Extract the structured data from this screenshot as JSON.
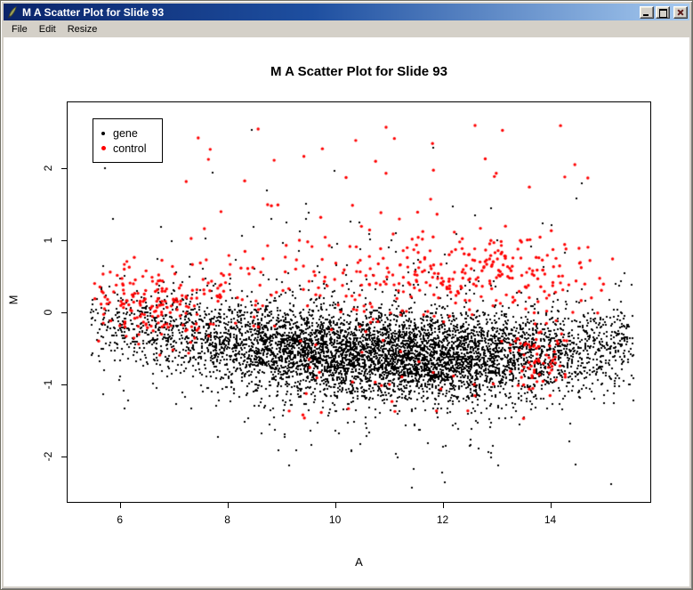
{
  "window": {
    "title": "M A Scatter Plot for Slide 93",
    "menu": [
      {
        "label": "File"
      },
      {
        "label": "Edit"
      },
      {
        "label": "Resize"
      }
    ],
    "controls": [
      {
        "name": "minimize"
      },
      {
        "name": "maximize"
      },
      {
        "name": "close"
      }
    ]
  },
  "chart_data": {
    "type": "scatter",
    "title": "M A Scatter Plot for Slide 93",
    "xlabel": "A",
    "ylabel": "M",
    "xlim": [
      5.03,
      15.86
    ],
    "ylim": [
      -2.63,
      2.91
    ],
    "xticks": [
      6,
      8,
      10,
      12,
      14
    ],
    "yticks": [
      -2,
      -1,
      0,
      1,
      2
    ],
    "grid": false,
    "legend": {
      "position": "top-left",
      "entries": [
        {
          "label": "gene",
          "color": "#000000"
        },
        {
          "label": "control",
          "color": "#FF0000"
        }
      ]
    },
    "seed": 42,
    "series": [
      {
        "name": "gene",
        "color": "#000000",
        "marker_size_px": 2,
        "gen": {
          "count": 6200,
          "a_normal": {
            "mean": 10.9,
            "sd": 2.25
          },
          "a_uniform_frac": 0.13,
          "a_range": [
            5.45,
            15.55
          ],
          "m_curve": {
            "base": -0.62,
            "quad": 0.013,
            "center": 12.0
          },
          "m_sd": 0.3,
          "m_tail_frac": 0.12,
          "m_tail_sd": 0.62,
          "m_range": [
            -2.48,
            2.82
          ],
          "outliers_high": {
            "count": 26,
            "a_mean": 10.8,
            "a_sd": 1.9,
            "m_min": 0.95,
            "m_span": 1.8
          },
          "outliers_low": {
            "count": 16,
            "a_min": 8.0,
            "a_max": 14.0,
            "m_min": -2.45,
            "m_max": -1.55
          }
        }
      },
      {
        "name": "control",
        "color": "#FF0000",
        "marker_size_px": 3,
        "clusters": [
          {
            "name": "left-band",
            "count": 190,
            "a": {
              "mean": 6.7,
              "sd": 0.85,
              "min": 5.5,
              "max": 9.2
            },
            "m": {
              "mean": 0.15,
              "sd": 0.3
            }
          },
          {
            "name": "mid-scatter",
            "count": 115,
            "a": {
              "uniform": [
                8.0,
                11.8
              ]
            },
            "m": {
              "mean": 0.38,
              "sd": 0.42
            }
          },
          {
            "name": "right-top-cluster",
            "count": 210,
            "a": {
              "mean": 12.9,
              "sd": 1.05,
              "min": 10.4,
              "max": 15.2
            },
            "m": {
              "mean": 0.55,
              "sd": 0.3
            }
          },
          {
            "name": "bottom-right-blob",
            "count": 70,
            "a": {
              "mean": 13.8,
              "sd": 0.33,
              "min": 12.6,
              "max": 15.0
            },
            "m": {
              "mean": -0.63,
              "sd": 0.2
            }
          },
          {
            "name": "high-outliers",
            "count": 38,
            "a": {
              "uniform": [
                6.5,
                14.7
              ]
            },
            "m": {
              "uniform": [
                1.05,
                2.62
              ]
            }
          },
          {
            "name": "low-scatter",
            "count": 30,
            "a": {
              "uniform": [
                8.0,
                14.3
              ]
            },
            "m": {
              "mean": -1.05,
              "sd": 0.35
            }
          }
        ]
      }
    ]
  }
}
